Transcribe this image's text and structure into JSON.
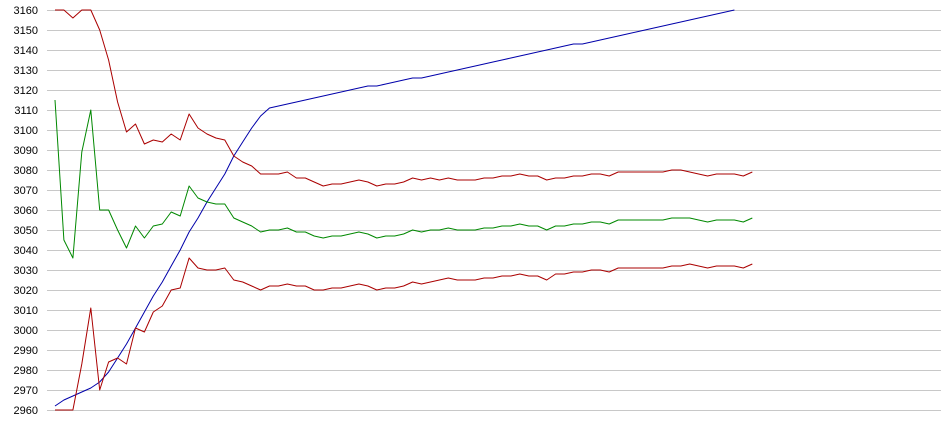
{
  "chart_data": {
    "type": "line",
    "grid": true,
    "legend": "none",
    "title": "",
    "xlabel": "",
    "ylabel": "",
    "ylim": [
      2960,
      3160
    ],
    "yticks": [
      2960,
      2970,
      2980,
      2990,
      3000,
      3010,
      3020,
      3030,
      3040,
      3050,
      3060,
      3070,
      3080,
      3090,
      3100,
      3110,
      3120,
      3130,
      3140,
      3150,
      3160
    ],
    "xticks": [],
    "x_count": 100,
    "series": [
      {
        "color": "#0000aa",
        "values": [
          2962,
          2965,
          2967,
          2969,
          2971,
          2974,
          2979,
          2986,
          2993,
          3001,
          3009,
          3017,
          3024,
          3032,
          3040,
          3049,
          3056,
          3064,
          3071,
          3078,
          3087,
          3094,
          3101,
          3107,
          3111,
          3112,
          3113,
          3114,
          3115,
          3116,
          3117,
          3118,
          3119,
          3120,
          3121,
          3122,
          3122,
          3123,
          3124,
          3125,
          3126,
          3126,
          3127,
          3128,
          3129,
          3130,
          3131,
          3132,
          3133,
          3134,
          3135,
          3136,
          3137,
          3138,
          3139,
          3140,
          3141,
          3142,
          3143,
          3143,
          3144,
          3145,
          3146,
          3147,
          3148,
          3149,
          3150,
          3151,
          3152,
          3153,
          3154,
          3155,
          3156,
          3157,
          3158,
          3159,
          3160
        ]
      },
      {
        "color": "#aa0000",
        "values": [
          3160,
          3160,
          3156,
          3160,
          3160,
          3150,
          3135,
          3114,
          3099,
          3103,
          3093,
          3095,
          3094,
          3098,
          3095,
          3108,
          3101,
          3098,
          3096,
          3095,
          3087,
          3084,
          3082,
          3078,
          3078,
          3078,
          3079,
          3076,
          3076,
          3074,
          3072,
          3073,
          3073,
          3074,
          3075,
          3074,
          3072,
          3073,
          3073,
          3074,
          3076,
          3075,
          3076,
          3075,
          3076,
          3075,
          3075,
          3075,
          3076,
          3076,
          3077,
          3077,
          3078,
          3077,
          3077,
          3075,
          3076,
          3076,
          3077,
          3077,
          3078,
          3078,
          3077,
          3079,
          3079,
          3079,
          3079,
          3079,
          3079,
          3080,
          3080,
          3079,
          3078,
          3077,
          3078,
          3078,
          3078,
          3077,
          3079
        ]
      },
      {
        "color": "#008800",
        "values": [
          3115,
          3045,
          3036,
          3089,
          3110,
          3060,
          3060,
          3050,
          3041,
          3052,
          3046,
          3052,
          3053,
          3059,
          3057,
          3072,
          3066,
          3064,
          3063,
          3063,
          3056,
          3054,
          3052,
          3049,
          3050,
          3050,
          3051,
          3049,
          3049,
          3047,
          3046,
          3047,
          3047,
          3048,
          3049,
          3048,
          3046,
          3047,
          3047,
          3048,
          3050,
          3049,
          3050,
          3050,
          3051,
          3050,
          3050,
          3050,
          3051,
          3051,
          3052,
          3052,
          3053,
          3052,
          3052,
          3050,
          3052,
          3052,
          3053,
          3053,
          3054,
          3054,
          3053,
          3055,
          3055,
          3055,
          3055,
          3055,
          3055,
          3056,
          3056,
          3056,
          3055,
          3054,
          3055,
          3055,
          3055,
          3054,
          3056
        ]
      },
      {
        "color": "#aa0000",
        "values": [
          2960,
          2960,
          2960,
          2983,
          3011,
          2970,
          2984,
          2986,
          2983,
          3001,
          2999,
          3009,
          3012,
          3020,
          3021,
          3036,
          3031,
          3030,
          3030,
          3031,
          3025,
          3024,
          3022,
          3020,
          3022,
          3022,
          3023,
          3022,
          3022,
          3020,
          3020,
          3021,
          3021,
          3022,
          3023,
          3022,
          3020,
          3021,
          3021,
          3022,
          3024,
          3023,
          3024,
          3025,
          3026,
          3025,
          3025,
          3025,
          3026,
          3026,
          3027,
          3027,
          3028,
          3027,
          3027,
          3025,
          3028,
          3028,
          3029,
          3029,
          3030,
          3030,
          3029,
          3031,
          3031,
          3031,
          3031,
          3031,
          3031,
          3032,
          3032,
          3033,
          3032,
          3031,
          3032,
          3032,
          3032,
          3031,
          3033
        ]
      }
    ]
  }
}
